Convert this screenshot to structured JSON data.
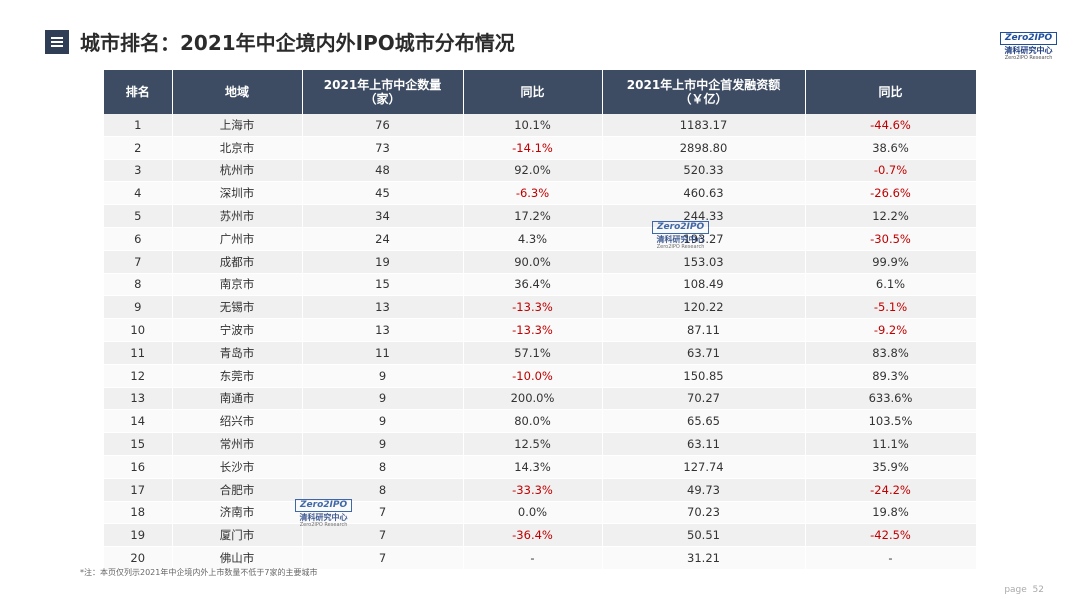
{
  "header": {
    "title": "城市排名：2021年中企境内外IPO城市分布情况"
  },
  "logo": {
    "mark": "Zero2IPO",
    "name": "清科研究中心",
    "sub": "Zero2IPO Research"
  },
  "table": {
    "headers": [
      [
        "排名"
      ],
      [
        "地域"
      ],
      [
        "2021年上市中企数量",
        "（家）"
      ],
      [
        "同比"
      ],
      [
        "2021年上市中企首发融资额",
        "（￥亿）"
      ],
      [
        "同比"
      ]
    ],
    "rows": [
      [
        "1",
        "上海市",
        "76",
        "10.1%",
        "1183.17",
        "-44.6%"
      ],
      [
        "2",
        "北京市",
        "73",
        "-14.1%",
        "2898.80",
        "38.6%"
      ],
      [
        "3",
        "杭州市",
        "48",
        "92.0%",
        "520.33",
        "-0.7%"
      ],
      [
        "4",
        "深圳市",
        "45",
        "-6.3%",
        "460.63",
        "-26.6%"
      ],
      [
        "5",
        "苏州市",
        "34",
        "17.2%",
        "244.33",
        "12.2%"
      ],
      [
        "6",
        "广州市",
        "24",
        "4.3%",
        "193.27",
        "-30.5%"
      ],
      [
        "7",
        "成都市",
        "19",
        "90.0%",
        "153.03",
        "99.9%"
      ],
      [
        "8",
        "南京市",
        "15",
        "36.4%",
        "108.49",
        "6.1%"
      ],
      [
        "9",
        "无锡市",
        "13",
        "-13.3%",
        "120.22",
        "-5.1%"
      ],
      [
        "10",
        "宁波市",
        "13",
        "-13.3%",
        "87.11",
        "-9.2%"
      ],
      [
        "11",
        "青岛市",
        "11",
        "57.1%",
        "63.71",
        "83.8%"
      ],
      [
        "12",
        "东莞市",
        "9",
        "-10.0%",
        "150.85",
        "89.3%"
      ],
      [
        "13",
        "南通市",
        "9",
        "200.0%",
        "70.27",
        "633.6%"
      ],
      [
        "14",
        "绍兴市",
        "9",
        "80.0%",
        "65.65",
        "103.5%"
      ],
      [
        "15",
        "常州市",
        "9",
        "12.5%",
        "63.11",
        "11.1%"
      ],
      [
        "16",
        "长沙市",
        "8",
        "14.3%",
        "127.74",
        "35.9%"
      ],
      [
        "17",
        "合肥市",
        "8",
        "-33.3%",
        "49.73",
        "-24.2%"
      ],
      [
        "18",
        "济南市",
        "7",
        "0.0%",
        "70.23",
        "19.8%"
      ],
      [
        "19",
        "厦门市",
        "7",
        "-36.4%",
        "50.51",
        "-42.5%"
      ],
      [
        "20",
        "佛山市",
        "7",
        "-",
        "31.21",
        "-"
      ]
    ]
  },
  "footnote": "*注：本页仅列示2021年中企境内外上市数量不低于7家的主要城市",
  "page": {
    "label": "page",
    "number": "52"
  }
}
